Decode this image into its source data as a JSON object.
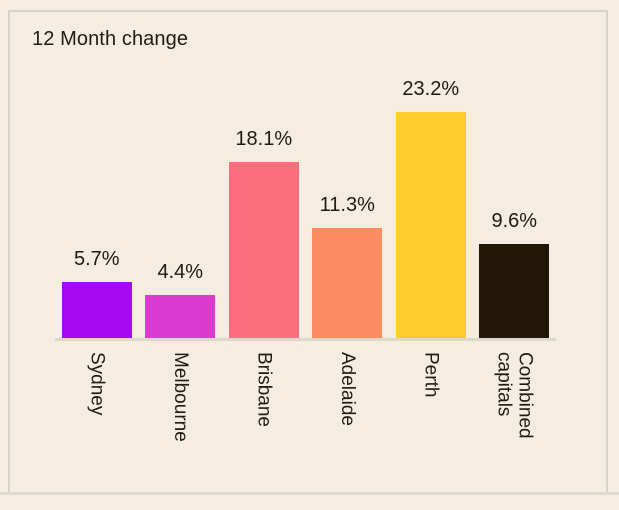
{
  "title": "12 Month change",
  "colors": {
    "background": "#F5EDE2",
    "card_border": "#D9D3C9",
    "axis_line": "#DDD7CC",
    "text": "#211B11"
  },
  "chart_data": {
    "type": "bar",
    "title": "12 Month change",
    "xlabel": "",
    "ylabel": "",
    "value_suffix": "%",
    "categories": [
      "Sydney",
      "Melbourne",
      "Brisbane",
      "Adelaide",
      "Perth",
      "Combined\ncapitals"
    ],
    "values": [
      5.7,
      4.4,
      18.1,
      11.3,
      23.2,
      9.6
    ],
    "value_labels": [
      "5.7%",
      "4.4%",
      "18.1%",
      "11.3%",
      "23.2%",
      "9.6%"
    ],
    "bar_colors": [
      "#A50AF2",
      "#DA3ACD",
      "#FD6E80",
      "#FD8C62",
      "#FFCC2F",
      "#221607"
    ],
    "ylim": [
      0,
      23.2
    ],
    "grid": false,
    "legend": false
  }
}
